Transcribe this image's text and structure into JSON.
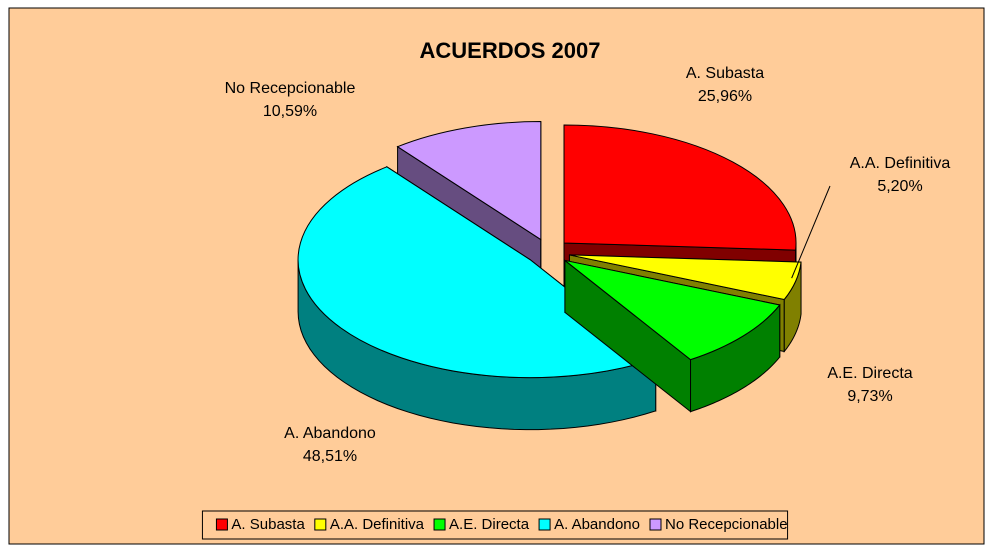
{
  "chart_data": {
    "type": "pie3d",
    "title": "ACUERDOS 2007",
    "categories": [
      "A. Subasta",
      "A.A. Definitiva",
      "A.E. Directa",
      "A. Abandono",
      "No Recepcionable"
    ],
    "values": [
      25.96,
      5.2,
      9.73,
      48.51,
      10.59
    ],
    "value_labels": [
      "25,96%",
      "5,20%",
      "9,73%",
      "48,51%",
      "10,59%"
    ],
    "colors": [
      "#ff0000",
      "#ffff00",
      "#00ff00",
      "#00ffff",
      "#cc99ff"
    ],
    "legend": "bottom"
  }
}
